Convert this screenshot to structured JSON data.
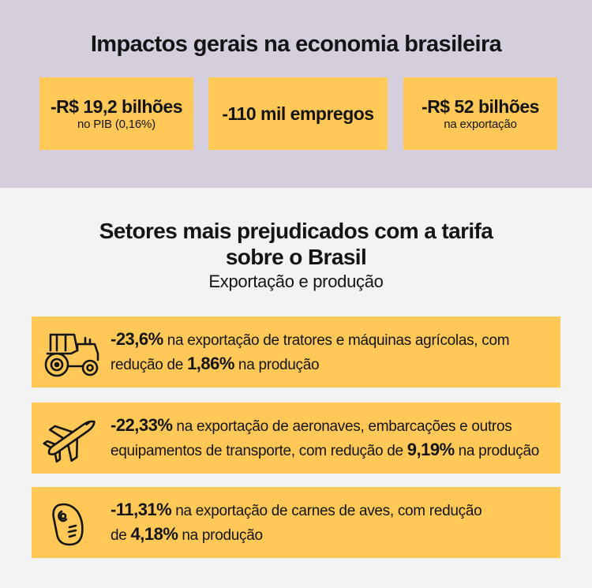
{
  "header": {
    "title": "Impactos gerais na economia brasileira"
  },
  "stats": [
    {
      "value": "-R$ 19,2 bilhões",
      "sub": "no PIB (0,16%)"
    },
    {
      "value": "-110 mil empregos",
      "sub": ""
    },
    {
      "value": "-R$ 52 bilhões",
      "sub": "na exportação"
    }
  ],
  "sectors": {
    "title_line1": "Setores mais prejudicados com a tarifa",
    "title_line2": "sobre o Brasil",
    "subtitle": "Exportação e produção",
    "items": [
      {
        "icon": "tractor-icon",
        "pct_export": "-23,6%",
        "text_a": " na exportação de tratores e máquinas agrícolas, com",
        "text_b": "redução de ",
        "pct_prod": "1,86%",
        "text_c": " na produção"
      },
      {
        "icon": "airplane-icon",
        "pct_export": "-22,33%",
        "text_a": " na exportação de aeronaves, embarcações e outros",
        "text_b": "equipamentos de transporte, com redução de ",
        "pct_prod": "9,19%",
        "text_c": " na produção"
      },
      {
        "icon": "meat-icon",
        "pct_export": "-11,31%",
        "text_a": " na exportação de carnes de aves, com redução",
        "text_b": "de ",
        "pct_prod": "4,18%",
        "text_c": " na produção"
      }
    ]
  },
  "colors": {
    "top_background": "#d5cedd",
    "bottom_background": "#f3f3f3",
    "accent": "#ffc857",
    "text": "#141414"
  }
}
